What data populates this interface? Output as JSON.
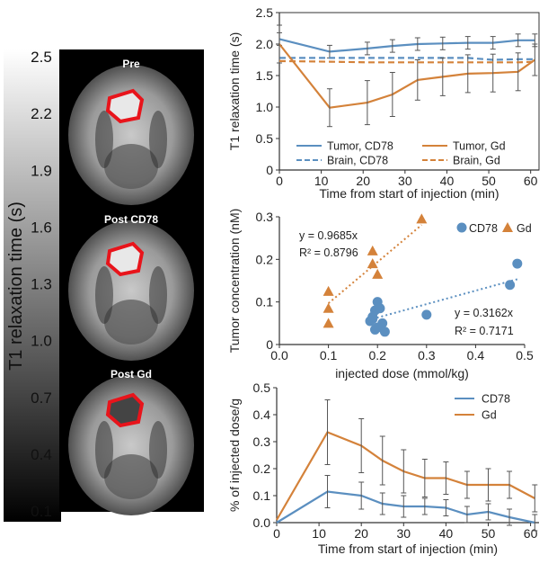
{
  "colors": {
    "cd78": "#5b8fc0",
    "gd": "#d4823a",
    "roi": "#e8141b"
  },
  "colorbar": {
    "title": "T1 relaxation time (s)",
    "ticks": [
      "2.5",
      "2.2",
      "1.9",
      "1.6",
      "1.3",
      "1.0",
      "0.7",
      "0.4",
      "0.1"
    ]
  },
  "mri_panels": [
    "Pre",
    "Post CD78",
    "Post Gd"
  ],
  "chart_data": [
    {
      "type": "line",
      "title": "",
      "xlabel": "Time from start of injection (min)",
      "ylabel": "T1 relaxation time (s)",
      "xlim": [
        0,
        62
      ],
      "ylim": [
        0,
        2.5
      ],
      "xticks": [
        "0",
        "10",
        "20",
        "30",
        "40",
        "50",
        "60"
      ],
      "yticks": [
        "0",
        "0.5",
        "1.0",
        "1.5",
        "2.0",
        "2.5"
      ],
      "legend": "bottom",
      "series": [
        {
          "name": "Tumor, CD78",
          "style": "solid",
          "color": "#5b8fc0",
          "x": [
            0,
            12,
            21,
            27,
            33,
            39,
            45,
            51,
            57,
            61
          ],
          "y": [
            2.08,
            1.88,
            1.93,
            1.97,
            2.0,
            2.01,
            2.02,
            2.02,
            2.06,
            2.06
          ],
          "err": [
            0.1,
            0.1,
            0.1,
            0.1,
            0.1,
            0.1,
            0.1,
            0.1,
            0.1,
            0.1
          ]
        },
        {
          "name": "Brain, CD78",
          "style": "dashed",
          "color": "#5b8fc0",
          "x": [
            0,
            12,
            21,
            27,
            33,
            39,
            45,
            51,
            57,
            61
          ],
          "y": [
            1.78,
            1.78,
            1.78,
            1.78,
            1.78,
            1.78,
            1.78,
            1.75,
            1.76,
            1.76
          ],
          "err": []
        },
        {
          "name": "Tumor, Gd",
          "style": "solid",
          "color": "#d4823a",
          "x": [
            0,
            12,
            21,
            27,
            33,
            39,
            45,
            51,
            57,
            61
          ],
          "y": [
            2.0,
            0.99,
            1.07,
            1.2,
            1.43,
            1.48,
            1.53,
            1.54,
            1.56,
            1.75
          ],
          "err": [
            0.3,
            0.3,
            0.35,
            0.35,
            0.32,
            0.3,
            0.3,
            0.3,
            0.3,
            0.25
          ]
        },
        {
          "name": "Brain, Gd",
          "style": "dashed",
          "color": "#d4823a",
          "x": [
            0,
            12,
            21,
            27,
            33,
            39,
            45,
            51,
            57,
            61
          ],
          "y": [
            1.73,
            1.72,
            1.71,
            1.71,
            1.71,
            1.71,
            1.71,
            1.71,
            1.71,
            1.72
          ],
          "err": []
        }
      ]
    },
    {
      "type": "scatter",
      "title": "",
      "xlabel": "injected dose (mmol/kg)",
      "ylabel": "Tumor concentration (nM)",
      "xlim": [
        0,
        0.5
      ],
      "ylim": [
        0,
        0.3
      ],
      "xticks": [
        "0.0",
        "0.1",
        "0.2",
        "0.3",
        "0.4",
        "0.5"
      ],
      "yticks": [
        "0",
        "0.1",
        "0.2",
        "0.3"
      ],
      "legend": "top-right",
      "series": [
        {
          "name": "CD78",
          "marker": "circle",
          "color": "#5b8fc0",
          "x": [
            0.185,
            0.19,
            0.195,
            0.2,
            0.205,
            0.21,
            0.195,
            0.2,
            0.215,
            0.19,
            0.3,
            0.47,
            0.485
          ],
          "y": [
            0.055,
            0.06,
            0.08,
            0.1,
            0.085,
            0.05,
            0.035,
            0.04,
            0.03,
            0.065,
            0.07,
            0.14,
            0.19
          ],
          "fit": {
            "slope": 0.3162,
            "x0": 0.19,
            "x1": 0.49
          }
        },
        {
          "name": "Gd",
          "marker": "triangle",
          "color": "#d4823a",
          "x": [
            0.1,
            0.1,
            0.1,
            0.19,
            0.19,
            0.2,
            0.29
          ],
          "y": [
            0.125,
            0.085,
            0.05,
            0.22,
            0.19,
            0.165,
            0.295
          ],
          "fit": {
            "slope": 0.9685,
            "x0": 0.1,
            "x1": 0.29
          }
        }
      ],
      "annotations": {
        "gd_eq": "y = 0.9685x",
        "gd_r2": "R² = 0.8796",
        "cd78_eq": "y = 0.3162x",
        "cd78_r2": "R² = 0.7171"
      }
    },
    {
      "type": "line",
      "title": "",
      "xlabel": "Time from start of injection (min)",
      "ylabel": "% of injected dose/g",
      "xlim": [
        0,
        62
      ],
      "ylim": [
        0,
        0.5
      ],
      "xticks": [
        "0",
        "10",
        "20",
        "30",
        "40",
        "50",
        "60"
      ],
      "yticks": [
        "0.0",
        "0.1",
        "0.2",
        "0.3",
        "0.4",
        "0.5"
      ],
      "legend": "top-right",
      "series": [
        {
          "name": "CD78",
          "color": "#5b8fc0",
          "x": [
            0,
            12,
            20,
            25,
            30,
            35,
            40,
            45,
            50,
            55,
            61
          ],
          "y": [
            0.0,
            0.115,
            0.1,
            0.07,
            0.06,
            0.06,
            0.055,
            0.03,
            0.04,
            0.02,
            0.0
          ],
          "err": [
            0,
            0.06,
            0.05,
            0.04,
            0.04,
            0.03,
            0.03,
            0.03,
            0.03,
            0.03,
            0.03
          ]
        },
        {
          "name": "Gd",
          "color": "#d4823a",
          "x": [
            0,
            12,
            20,
            25,
            30,
            35,
            40,
            45,
            50,
            55,
            61
          ],
          "y": [
            0.01,
            0.335,
            0.285,
            0.23,
            0.19,
            0.165,
            0.165,
            0.14,
            0.14,
            0.14,
            0.09
          ],
          "err": [
            0,
            0.12,
            0.1,
            0.09,
            0.08,
            0.07,
            0.06,
            0.05,
            0.06,
            0.05,
            0.05
          ]
        }
      ]
    }
  ]
}
